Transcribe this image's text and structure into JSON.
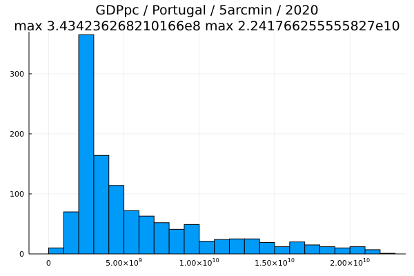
{
  "chart_data": {
    "type": "bar",
    "title_line1": "GDPpc / Portugal / 5arcmin / 2020",
    "title_line2": "max 3.434236268210166e8  max 2.241766255555827e10",
    "xlabel": "",
    "ylabel": "",
    "grid": true,
    "legend": "none",
    "bar_color": "#009AF9",
    "edge_color": "#000000",
    "bin_width": 1000000000,
    "bin_start": 0,
    "values": [
      10,
      70,
      365,
      164,
      114,
      72,
      63,
      52,
      41,
      49,
      21,
      24,
      25,
      25,
      19,
      12,
      20,
      15,
      12,
      10,
      12,
      7,
      1
    ],
    "xlim": [
      -1300000000,
      23700000000
    ],
    "ylim": [
      0,
      370
    ],
    "x_ticks": [
      {
        "value": 0,
        "mant": "0",
        "exp": ""
      },
      {
        "value": 5000000000,
        "mant": "5.00×10",
        "exp": "9"
      },
      {
        "value": 10000000000,
        "mant": "1.00×10",
        "exp": "10"
      },
      {
        "value": 15000000000,
        "mant": "1.50×10",
        "exp": "10"
      },
      {
        "value": 20000000000,
        "mant": "2.00×10",
        "exp": "10"
      }
    ],
    "y_ticks": [
      {
        "value": 0,
        "label": "0"
      },
      {
        "value": 100,
        "label": "100"
      },
      {
        "value": 200,
        "label": "200"
      },
      {
        "value": 300,
        "label": "300"
      }
    ]
  }
}
